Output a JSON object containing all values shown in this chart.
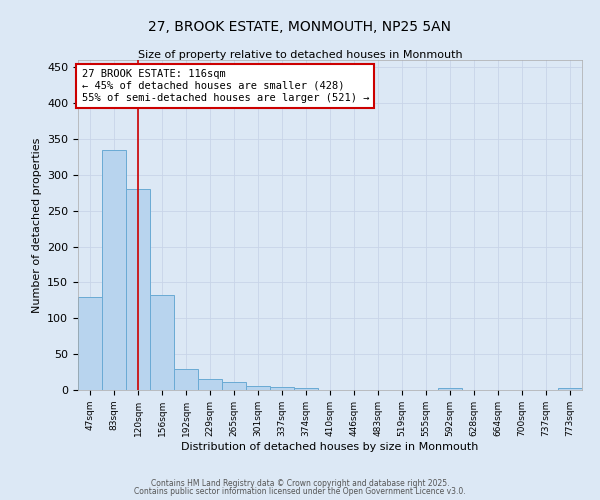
{
  "title_line1": "27, BROOK ESTATE, MONMOUTH, NP25 5AN",
  "title_line2": "Size of property relative to detached houses in Monmouth",
  "xlabel": "Distribution of detached houses by size in Monmouth",
  "ylabel": "Number of detached properties",
  "categories": [
    "47sqm",
    "83sqm",
    "120sqm",
    "156sqm",
    "192sqm",
    "229sqm",
    "265sqm",
    "301sqm",
    "337sqm",
    "374sqm",
    "410sqm",
    "446sqm",
    "483sqm",
    "519sqm",
    "555sqm",
    "592sqm",
    "628sqm",
    "664sqm",
    "700sqm",
    "737sqm",
    "773sqm"
  ],
  "values": [
    130,
    335,
    280,
    133,
    29,
    16,
    11,
    6,
    4,
    3,
    0,
    0,
    0,
    0,
    0,
    3,
    0,
    0,
    0,
    0,
    3
  ],
  "bar_color": "#b8d4ee",
  "bar_edge_color": "#6aaad4",
  "vline_x": 2,
  "vline_color": "#cc0000",
  "annotation_text": "27 BROOK ESTATE: 116sqm\n← 45% of detached houses are smaller (428)\n55% of semi-detached houses are larger (521) →",
  "annotation_box_color": "#ffffff",
  "annotation_box_edge": "#cc0000",
  "ylim": [
    0,
    460
  ],
  "yticks": [
    0,
    50,
    100,
    150,
    200,
    250,
    300,
    350,
    400,
    450
  ],
  "grid_color": "#c8d4e8",
  "bg_color": "#dce8f5",
  "footer_line1": "Contains HM Land Registry data © Crown copyright and database right 2025.",
  "footer_line2": "Contains public sector information licensed under the Open Government Licence v3.0."
}
